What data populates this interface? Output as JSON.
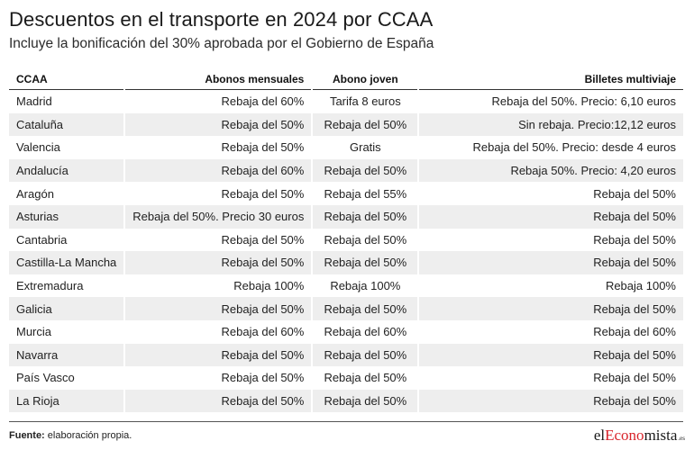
{
  "header": {
    "title": "Descuentos en el transporte en 2024 por CCAA",
    "subtitle": "Incluye la bonificación del 30% aprobada por el Gobierno de España"
  },
  "table": {
    "columns": [
      "CCAA",
      "Abonos mensuales",
      "Abono joven",
      "Billetes multiviaje"
    ],
    "rows": [
      [
        "Madrid",
        "Rebaja del 60%",
        "Tarifa 8 euros",
        "Rebaja del 50%. Precio: 6,10 euros"
      ],
      [
        "Cataluña",
        "Rebaja del 50%",
        "Rebaja del 50%",
        "Sin rebaja. Precio:12,12 euros"
      ],
      [
        "Valencia",
        "Rebaja del 50%",
        "Gratis",
        "Rebaja del 50%. Precio: desde 4 euros"
      ],
      [
        "Andalucía",
        "Rebaja del 60%",
        "Rebaja del 50%",
        "Rebaja 50%. Precio: 4,20 euros"
      ],
      [
        "Aragón",
        "Rebaja del 50%",
        "Rebaja del 55%",
        "Rebaja del 50%"
      ],
      [
        "Asturias",
        "Rebaja del 50%. Precio 30 euros",
        "Rebaja del 50%",
        "Rebaja del 50%"
      ],
      [
        "Cantabria",
        "Rebaja del 50%",
        "Rebaja del 50%",
        "Rebaja del 50%"
      ],
      [
        "Castilla-La Mancha",
        "Rebaja del 50%",
        "Rebaja del 50%",
        "Rebaja del 50%"
      ],
      [
        "Extremadura",
        "Rebaja 100%",
        "Rebaja 100%",
        "Rebaja 100%"
      ],
      [
        "Galicia",
        "Rebaja del 50%",
        "Rebaja del 50%",
        "Rebaja del 50%"
      ],
      [
        "Murcia",
        "Rebaja del 60%",
        "Rebaja del 60%",
        "Rebaja del 60%"
      ],
      [
        "Navarra",
        "Rebaja del 50%",
        "Rebaja del 50%",
        "Rebaja del 50%"
      ],
      [
        "País Vasco",
        "Rebaja del 50%",
        "Rebaja del 50%",
        "Rebaja del 50%"
      ],
      [
        "La Rioja",
        "Rebaja del 50%",
        "Rebaja del 50%",
        "Rebaja del 50%"
      ]
    ]
  },
  "footer": {
    "source_label": "Fuente:",
    "source_text": " elaboración propia.",
    "logo": {
      "part1": "el",
      "part2": "Econo",
      "part3": "mista",
      "tld": ".es"
    }
  },
  "colors": {
    "accent": "#d8232a",
    "stripe": "#eeeeee"
  }
}
